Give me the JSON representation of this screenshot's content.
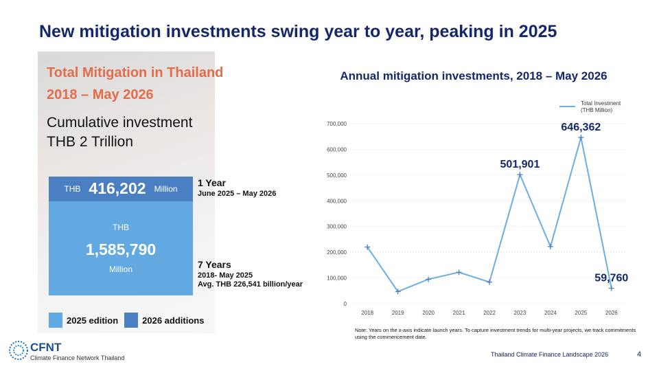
{
  "title": "New mitigation investments swing year to year, peaking in 2025",
  "panel": {
    "heading": [
      "Total Mitigation in Thailand",
      "2018 – May 2026"
    ],
    "cumulative": [
      "Cumulative investment",
      "THB 2 Trillion"
    ],
    "additions": {
      "currency": "THB",
      "amount": {
        "value": 416202,
        "label": "416,202"
      },
      "unit": "Million",
      "period": "1 Year",
      "range": "June 2025 – May 2026"
    },
    "edition": {
      "currency": "THB",
      "amount": {
        "value": 1585790,
        "label": "1,585,790"
      },
      "unit": "Million",
      "period": "7 Years",
      "range": "2018- May 2025",
      "average": "Avg. THB 226,541 billion/year"
    },
    "legend": [
      {
        "name": "2025 edition",
        "color": "#63a9e1"
      },
      {
        "name": "2026 additions",
        "color": "#4a7fc2"
      }
    ]
  },
  "chart_data": {
    "type": "line",
    "title": "Annual mitigation investments, 2018 – May 2026",
    "categories": [
      "2018",
      "2019",
      "2020",
      "2021",
      "2022",
      "2023",
      "2024",
      "2025",
      "2026"
    ],
    "series": [
      {
        "name": "Total Investment (THB Million)",
        "color": "#6aaee3",
        "values": [
          220000,
          47000,
          95000,
          122000,
          84000,
          501901,
          222000,
          646362,
          59760
        ],
        "value_labels": [
          null,
          null,
          null,
          null,
          null,
          "501,901",
          null,
          "646,362",
          "59,760"
        ]
      }
    ],
    "ylim": [
      0,
      700000
    ],
    "yticks": [
      0,
      {
        "value": 100000,
        "label": "100,000"
      },
      {
        "value": 200000,
        "label": "200,000"
      },
      {
        "value": 300000,
        "label": "300,000"
      },
      {
        "value": 400000,
        "label": "400,000"
      },
      {
        "value": 500000,
        "label": "500,000"
      },
      {
        "value": 600000,
        "label": "600,000"
      },
      {
        "value": 700000,
        "label": "700,000"
      }
    ],
    "grid": true,
    "legend": "upper right",
    "note": "Note: Years on the x-axis indicate launch years. To capture investment trends for multi-year projects, we track commitments using the commencement date."
  },
  "footer": {
    "source": "Thailand Climate Finance Landscape 2026",
    "page": "4",
    "logo": "CFNT",
    "org": "Climate Finance Network Thailand"
  }
}
